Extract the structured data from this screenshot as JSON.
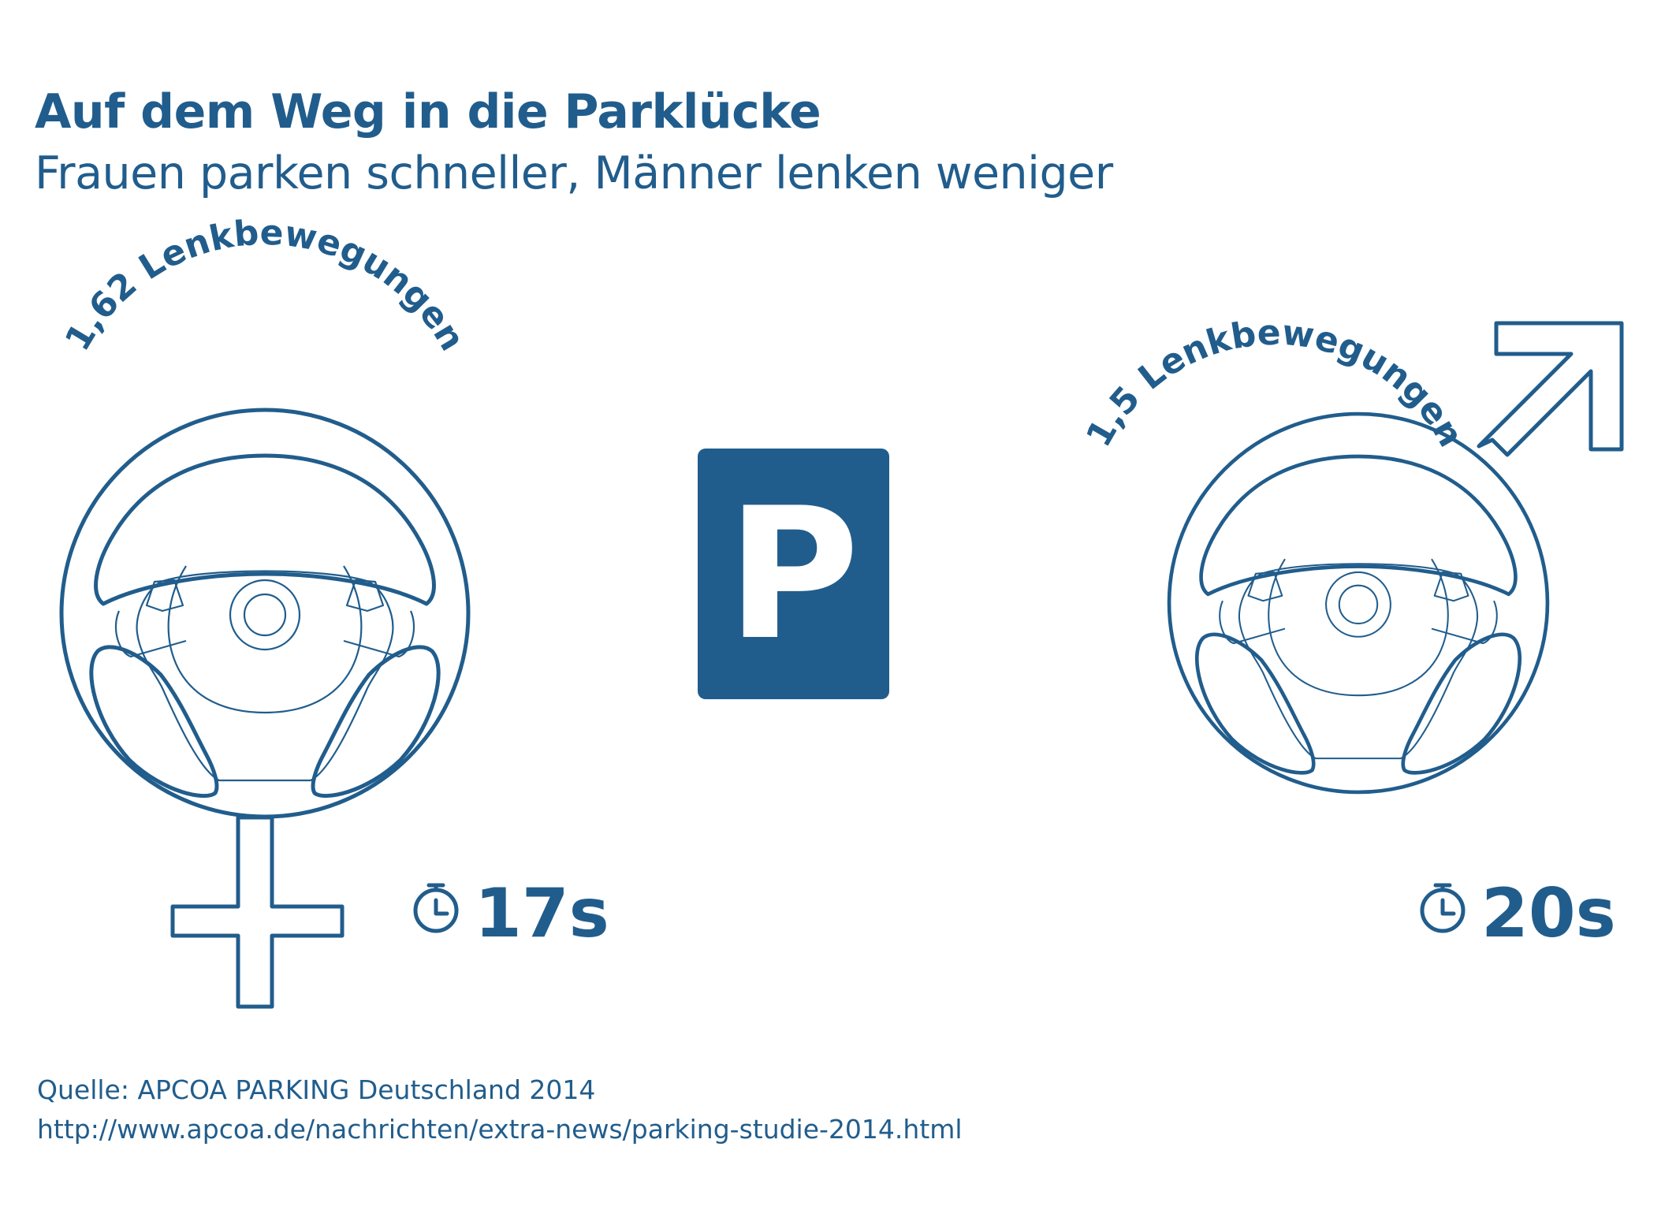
{
  "header": {
    "title": "Auf dem Weg in die Parklücke",
    "subtitle": "Frauen parken schneller, Männer lenken weniger"
  },
  "women": {
    "steering_label": "1,62 Lenkbewegungen",
    "steering_movements": 1.62,
    "time_label": "17s",
    "time_seconds": 17,
    "symbol": "female-symbol"
  },
  "men": {
    "steering_label": "1,5 Lenkbewegungen",
    "steering_movements": 1.5,
    "time_label": "20s",
    "time_seconds": 20,
    "symbol": "male-symbol"
  },
  "parking_sign": {
    "letter": "P",
    "icon": "parking-sign-icon"
  },
  "footer": {
    "source": "Quelle: APCOA PARKING Deutschland 2014",
    "url": "http://www.apcoa.de/nachrichten/extra-news/parking-studie-2014.html"
  },
  "colors": {
    "primary": "#215d8c",
    "background": "#ffffff"
  }
}
